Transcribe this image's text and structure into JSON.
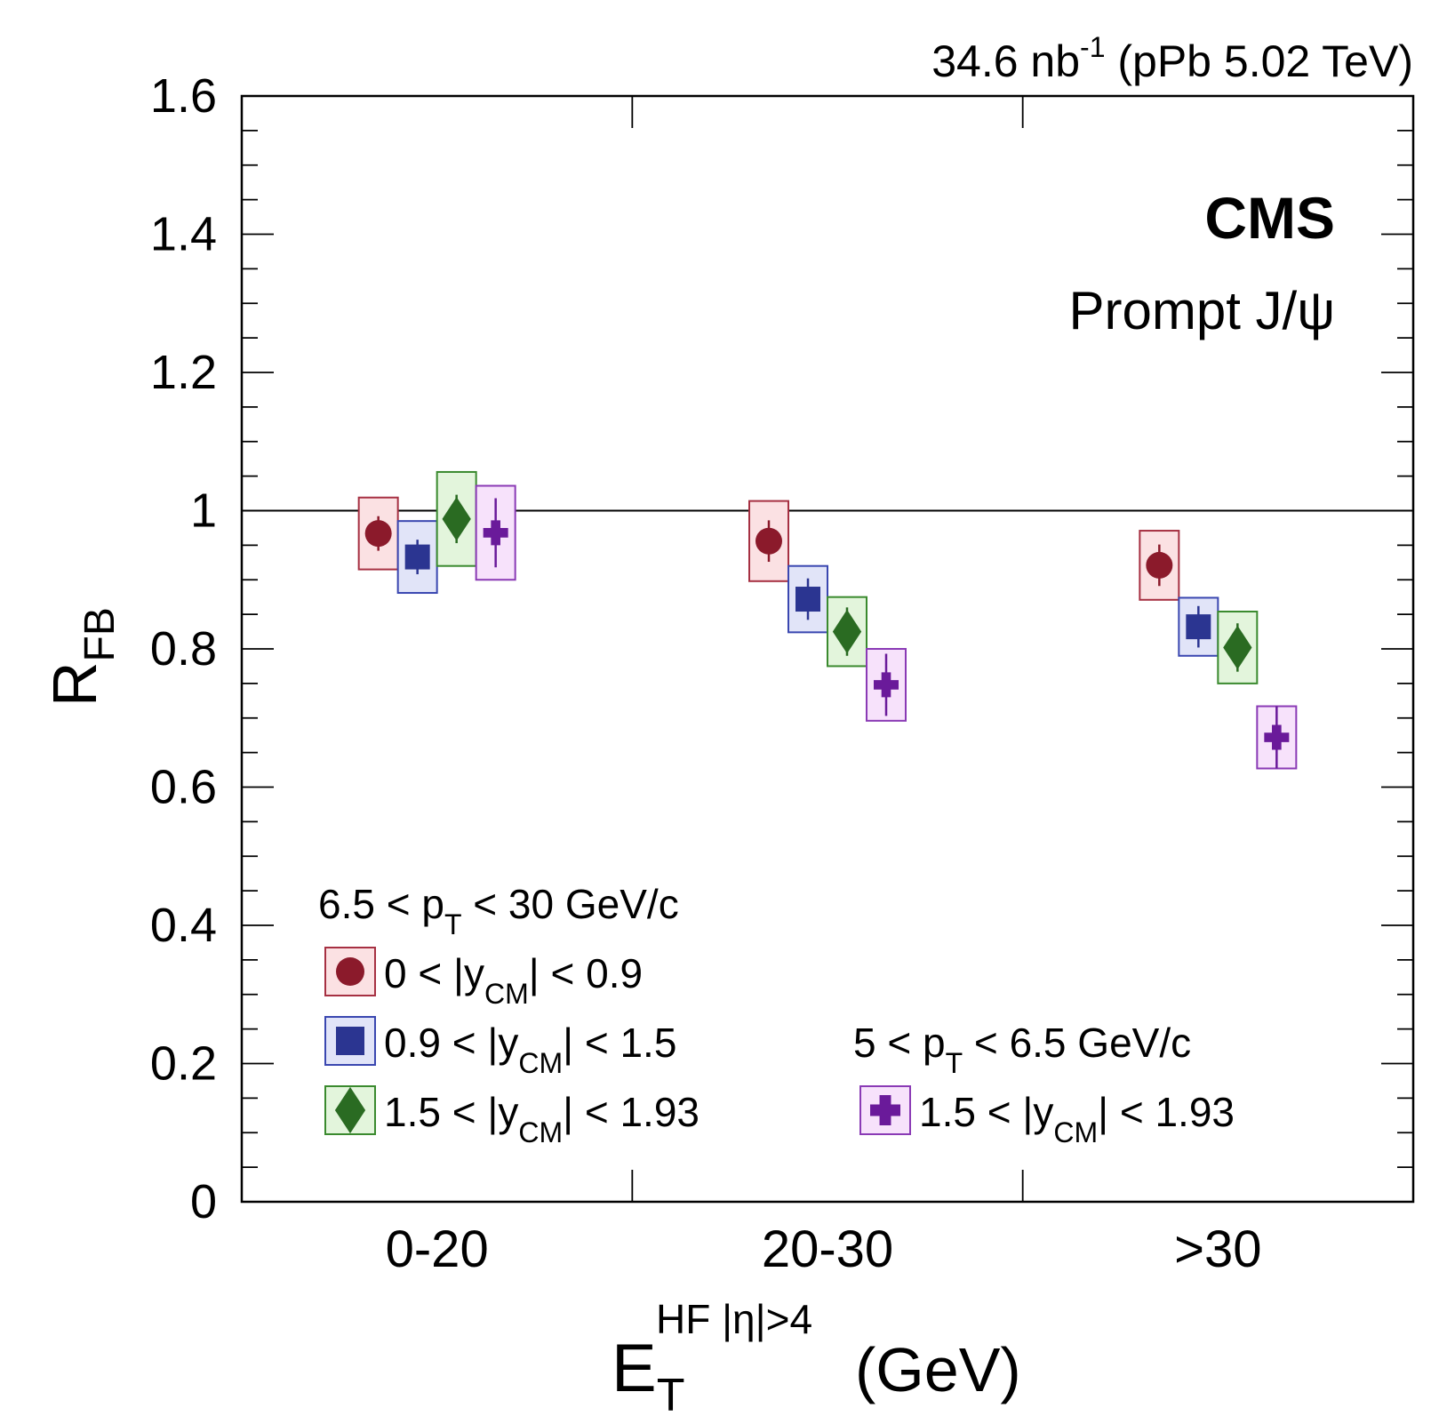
{
  "chart_data": {
    "type": "scatter",
    "lumi_label": "34.6 nb",
    "lumi_exp": "-1",
    "lumi_tail": " (pPb 5.02 TeV)",
    "experiment": "CMS",
    "subtitle": "Prompt J/ψ",
    "ylabel_main": "R",
    "ylabel_sub": "FB",
    "xlabel_main": "E",
    "xlabel_sub": "T",
    "xlabel_sup": "HF |η|>4",
    "xlabel_unit": "(GeV)",
    "categories": [
      "0-20",
      "20-30",
      ">30"
    ],
    "ylim": [
      0,
      1.6
    ],
    "yticks": [
      "0",
      "0.2",
      "0.4",
      "0.6",
      "0.8",
      "1",
      "1.2",
      "1.4",
      "1.6"
    ],
    "reference_line": 1,
    "legend": {
      "group1_prefix": "6.5 < p",
      "group1_sub": "T",
      "group1_suffix": " < 30 GeV/c",
      "group2_prefix": "5 < p",
      "group2_sub": "T",
      "group2_suffix": " < 6.5 GeV/c"
    },
    "series": [
      {
        "name": "0 < |y_CM| < 0.9",
        "label_prefix": "0 < |y",
        "label_sub": "CM",
        "label_suffix": "| < 0.9",
        "marker": "circle",
        "color": "#8b1a2b",
        "box_fill": "#fbe1e3",
        "box_stroke": "#a63042",
        "values": [
          0.967,
          0.956,
          0.921
        ],
        "stat_err": [
          0.025,
          0.03,
          0.03
        ],
        "sys_err": [
          0.052,
          0.058,
          0.05
        ]
      },
      {
        "name": "0.9 < |y_CM| < 1.5",
        "label_prefix": "0.9 < |y",
        "label_sub": "CM",
        "label_suffix": "| < 1.5",
        "marker": "square",
        "color": "#2b3591",
        "box_fill": "#e1e4f8",
        "box_stroke": "#3a47b0",
        "values": [
          0.933,
          0.872,
          0.832
        ],
        "stat_err": [
          0.025,
          0.03,
          0.03
        ],
        "sys_err": [
          0.052,
          0.048,
          0.042
        ]
      },
      {
        "name": "1.5 < |y_CM| < 1.93",
        "label_prefix": "1.5 < |y",
        "label_sub": "CM",
        "label_suffix": "| < 1.93",
        "marker": "diamond",
        "color": "#2a6b22",
        "box_fill": "#e3f5dc",
        "box_stroke": "#3a8a2e",
        "values": [
          0.988,
          0.825,
          0.802
        ],
        "stat_err": [
          0.035,
          0.035,
          0.035
        ],
        "sys_err": [
          0.068,
          0.05,
          0.052
        ]
      },
      {
        "name": "1.5 < |y_CM| < 1.93 (5 < pT < 6.5)",
        "label_prefix": "1.5 < |y",
        "label_sub": "CM",
        "label_suffix": "| < 1.93",
        "marker": "cross",
        "color": "#6a1a9a",
        "box_fill": "#f7e2fb",
        "box_stroke": "#8a3ab5",
        "values": [
          0.968,
          0.748,
          0.672
        ],
        "stat_err": [
          0.05,
          0.045,
          0.045
        ],
        "sys_err": [
          0.068,
          0.052,
          0.045
        ]
      }
    ]
  }
}
